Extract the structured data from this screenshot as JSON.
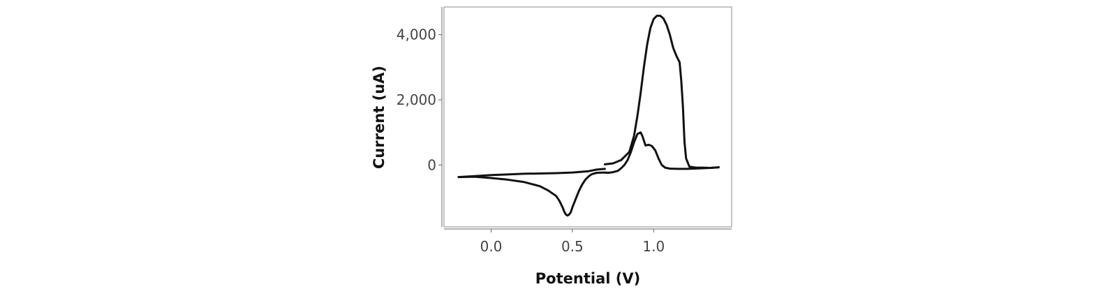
{
  "chart_data": {
    "type": "line",
    "title": "",
    "xlabel": "Potential (V)",
    "ylabel": "Current (uA)",
    "xlim": [
      -0.29,
      1.48
    ],
    "ylim": [
      -1900,
      4850
    ],
    "x_ticks": [
      0.0,
      0.5,
      1.0
    ],
    "x_tick_labels": [
      "0.0",
      "0.5",
      "1.0"
    ],
    "y_ticks": [
      0,
      2000,
      4000
    ],
    "y_tick_labels": [
      "0",
      "2,000",
      "4,000"
    ],
    "grid": false,
    "legend": "none",
    "line_color": "#111111",
    "series": [
      {
        "x": [
          0.7,
          0.75,
          0.8,
          0.85,
          0.88,
          0.9,
          0.92,
          0.94,
          0.96,
          0.98,
          1.0,
          1.02,
          1.04,
          1.06,
          1.08,
          1.1,
          1.12,
          1.14,
          1.16,
          1.17,
          1.18,
          1.19,
          1.2,
          1.22,
          1.26,
          1.3,
          1.35,
          1.4
        ],
        "y": [
          20,
          50,
          150,
          400,
          900,
          1500,
          2200,
          3000,
          3700,
          4200,
          4480,
          4580,
          4580,
          4500,
          4300,
          4000,
          3600,
          3350,
          3150,
          2600,
          1800,
          700,
          200,
          -50,
          -80,
          -80,
          -90,
          -70
        ]
      },
      {
        "x": [
          1.4,
          1.35,
          1.3,
          1.25,
          1.2,
          1.15,
          1.1,
          1.07,
          1.05,
          1.03,
          1.01,
          0.99,
          0.97,
          0.95,
          0.93,
          0.92,
          0.9,
          0.88,
          0.86,
          0.84,
          0.82,
          0.8,
          0.78,
          0.75,
          0.72,
          0.7,
          0.65,
          0.62,
          0.6,
          0.58,
          0.56,
          0.54,
          0.52,
          0.5,
          0.49,
          0.48,
          0.47,
          0.46,
          0.45,
          0.44,
          0.42,
          0.4,
          0.35,
          0.3,
          0.2,
          0.1,
          0.0,
          -0.1,
          -0.2
        ],
        "y": [
          -70,
          -90,
          -100,
          -110,
          -120,
          -120,
          -110,
          -80,
          0,
          200,
          450,
          580,
          620,
          600,
          900,
          1000,
          950,
          700,
          400,
          150,
          0,
          -100,
          -180,
          -220,
          -240,
          -230,
          -240,
          -280,
          -350,
          -450,
          -600,
          -800,
          -1050,
          -1300,
          -1450,
          -1520,
          -1550,
          -1520,
          -1430,
          -1300,
          -1100,
          -950,
          -780,
          -650,
          -520,
          -450,
          -400,
          -360,
          -370
        ]
      },
      {
        "x": [
          -0.2,
          -0.1,
          0.0,
          0.1,
          0.2,
          0.3,
          0.4,
          0.5,
          0.6,
          0.65,
          0.7
        ],
        "y": [
          -370,
          -340,
          -310,
          -290,
          -270,
          -260,
          -250,
          -230,
          -190,
          -140,
          -120
        ]
      }
    ]
  }
}
